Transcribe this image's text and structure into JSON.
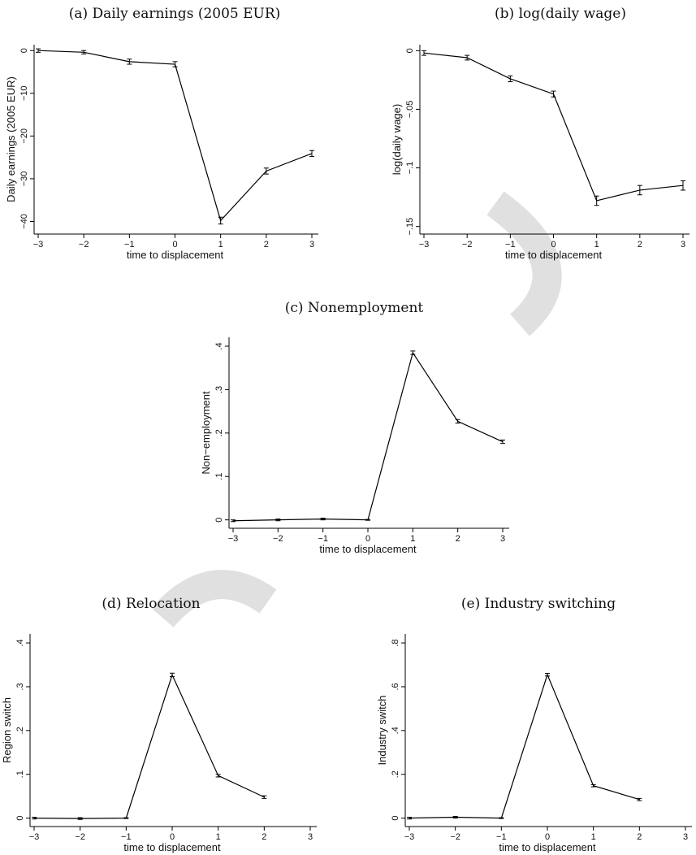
{
  "chart_data": [
    {
      "id": "a",
      "type": "line",
      "title": "(a) Daily earnings (2005 EUR)",
      "xlabel": "time to displacement",
      "ylabel": "Daily earnings (2005 EUR)",
      "x": [
        -3,
        -2,
        -1,
        0,
        1,
        2,
        3
      ],
      "values": [
        0,
        -0.4,
        -2.6,
        -3.2,
        -39.8,
        -28.2,
        -24.1
      ],
      "err": [
        0.4,
        0.4,
        0.6,
        0.6,
        0.8,
        0.7,
        0.7
      ],
      "xlim": [
        -3,
        3
      ],
      "ylim": [
        -42,
        0.8
      ],
      "xticks": [
        -3,
        -2,
        -1,
        0,
        1,
        2,
        3
      ],
      "yticks": [
        0,
        -10,
        -20,
        -30,
        -40
      ],
      "xtick_labels": [
        "−3",
        "−2",
        "−1",
        "0",
        "1",
        "2",
        "3"
      ],
      "ytick_labels": [
        "0",
        "−10",
        "−20",
        "−30",
        "−40"
      ]
    },
    {
      "id": "b",
      "type": "line",
      "title": "(b) log(daily wage)",
      "xlabel": "time to displacement",
      "ylabel": "log(daily wage)",
      "x": [
        -3,
        -2,
        -1,
        0,
        1,
        2,
        3
      ],
      "values": [
        -0.002,
        -0.006,
        -0.024,
        -0.037,
        -0.128,
        -0.119,
        -0.115
      ],
      "err": [
        0.002,
        0.002,
        0.0025,
        0.0025,
        0.004,
        0.004,
        0.004
      ],
      "xlim": [
        -3,
        3
      ],
      "ylim": [
        -0.153,
        0.003
      ],
      "xticks": [
        -3,
        -2,
        -1,
        0,
        1,
        2,
        3
      ],
      "yticks": [
        0,
        -0.05,
        -0.1,
        -0.15
      ],
      "xtick_labels": [
        "−3",
        "−2",
        "−1",
        "0",
        "1",
        "2",
        "3"
      ],
      "ytick_labels": [
        "0",
        "−.05",
        "−.1",
        "−.15"
      ]
    },
    {
      "id": "c",
      "type": "line",
      "title": "(c) Nonemployment",
      "xlabel": "time to displacement",
      "ylabel": "Non−employment",
      "x": [
        -3,
        -2,
        -1,
        0,
        1,
        2,
        3
      ],
      "values": [
        -0.002,
        0,
        0.002,
        0,
        0.385,
        0.227,
        0.18
      ],
      "err": [
        0.002,
        0.002,
        0.002,
        0.001,
        0.004,
        0.004,
        0.004
      ],
      "xlim": [
        -3,
        3
      ],
      "ylim": [
        -0.01,
        0.415
      ],
      "xticks": [
        -3,
        -2,
        -1,
        0,
        1,
        2,
        3
      ],
      "yticks": [
        0,
        0.1,
        0.2,
        0.3,
        0.4
      ],
      "xtick_labels": [
        "−3",
        "−2",
        "−1",
        "0",
        "1",
        "2",
        "3"
      ],
      "ytick_labels": [
        "0",
        ".1",
        ".2",
        ".3",
        ".4"
      ]
    },
    {
      "id": "d",
      "type": "line",
      "title": "(d) Relocation",
      "xlabel": "time to displacement",
      "ylabel": "Region switch",
      "x": [
        -3,
        -2,
        -1,
        0,
        1,
        2
      ],
      "values": [
        0,
        -0.001,
        0,
        0.327,
        0.097,
        0.048
      ],
      "err": [
        0.002,
        0.002,
        0.001,
        0.004,
        0.003,
        0.003
      ],
      "xlim": [
        -3,
        3
      ],
      "ylim": [
        -0.01,
        0.415
      ],
      "xticks": [
        -3,
        -2,
        -1,
        0,
        1,
        2,
        3
      ],
      "yticks": [
        0,
        0.1,
        0.2,
        0.3,
        0.4
      ],
      "xtick_labels": [
        "−3",
        "−2",
        "−1",
        "0",
        "1",
        "2",
        "3"
      ],
      "ytick_labels": [
        "0",
        ".1",
        ".2",
        ".3",
        ".4"
      ]
    },
    {
      "id": "e",
      "type": "line",
      "title": "(e) Industry switching",
      "xlabel": "time to displacement",
      "ylabel": "Industry switch",
      "x": [
        -3,
        -2,
        -1,
        0,
        1,
        2
      ],
      "values": [
        0,
        0.004,
        0,
        0.655,
        0.148,
        0.085
      ],
      "err": [
        0.004,
        0.004,
        0.002,
        0.006,
        0.005,
        0.005
      ],
      "xlim": [
        -3,
        3
      ],
      "ylim": [
        -0.02,
        0.83
      ],
      "xticks": [
        -3,
        -2,
        -1,
        0,
        1,
        2,
        3
      ],
      "yticks": [
        0,
        0.2,
        0.4,
        0.6,
        0.8
      ],
      "xtick_labels": [
        "−3",
        "−2",
        "−1",
        "0",
        "1",
        "2",
        "3"
      ],
      "ytick_labels": [
        "0",
        ".2",
        ".4",
        ".6",
        ".8"
      ]
    }
  ]
}
